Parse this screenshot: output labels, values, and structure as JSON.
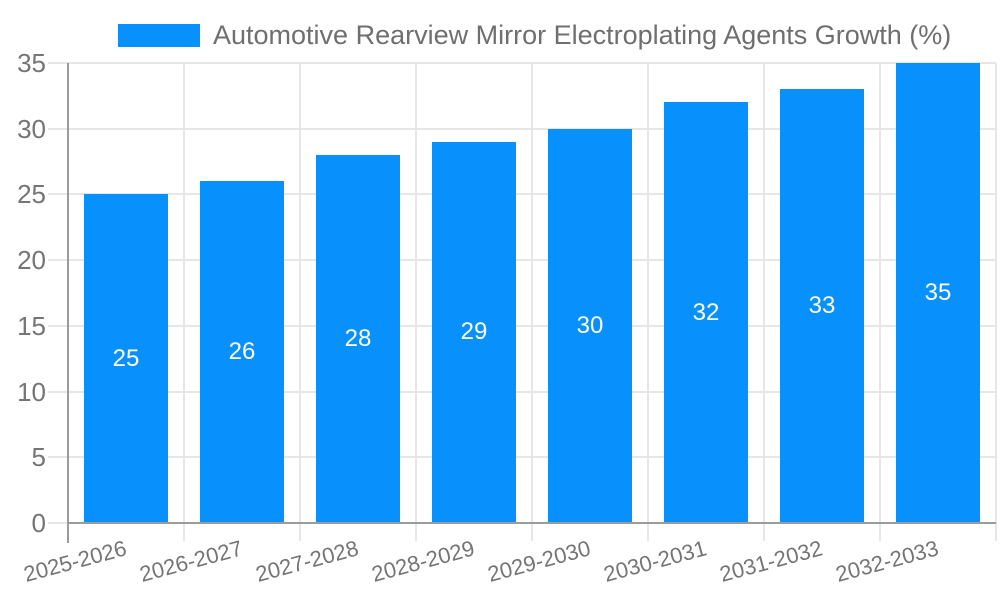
{
  "chart_data": {
    "type": "bar",
    "title": "Automotive Rearview Mirror Electroplating Agents Growth (%)",
    "categories": [
      "2025-2026",
      "2026-2027",
      "2027-2028",
      "2028-2029",
      "2029-2030",
      "2030-2031",
      "2031-2032",
      "2032-2033"
    ],
    "values": [
      25,
      26,
      28,
      29,
      30,
      32,
      33,
      35
    ],
    "value_labels": [
      "25",
      "26",
      "28",
      "29",
      "30",
      "32",
      "33",
      "35"
    ],
    "xlabel": "",
    "ylabel": "",
    "ylim": [
      0,
      35
    ],
    "yticks": [
      0,
      5,
      10,
      15,
      20,
      25,
      30,
      35
    ],
    "grid": true,
    "legend_position": "top-left",
    "colors": {
      "bar": "#0890FC",
      "gridline": "#E6E6E6",
      "axis_line": "#9B9B9B",
      "axis_label": "#757575",
      "title_text": "#6F6F6F",
      "value_label": "#FFFFFF"
    }
  }
}
